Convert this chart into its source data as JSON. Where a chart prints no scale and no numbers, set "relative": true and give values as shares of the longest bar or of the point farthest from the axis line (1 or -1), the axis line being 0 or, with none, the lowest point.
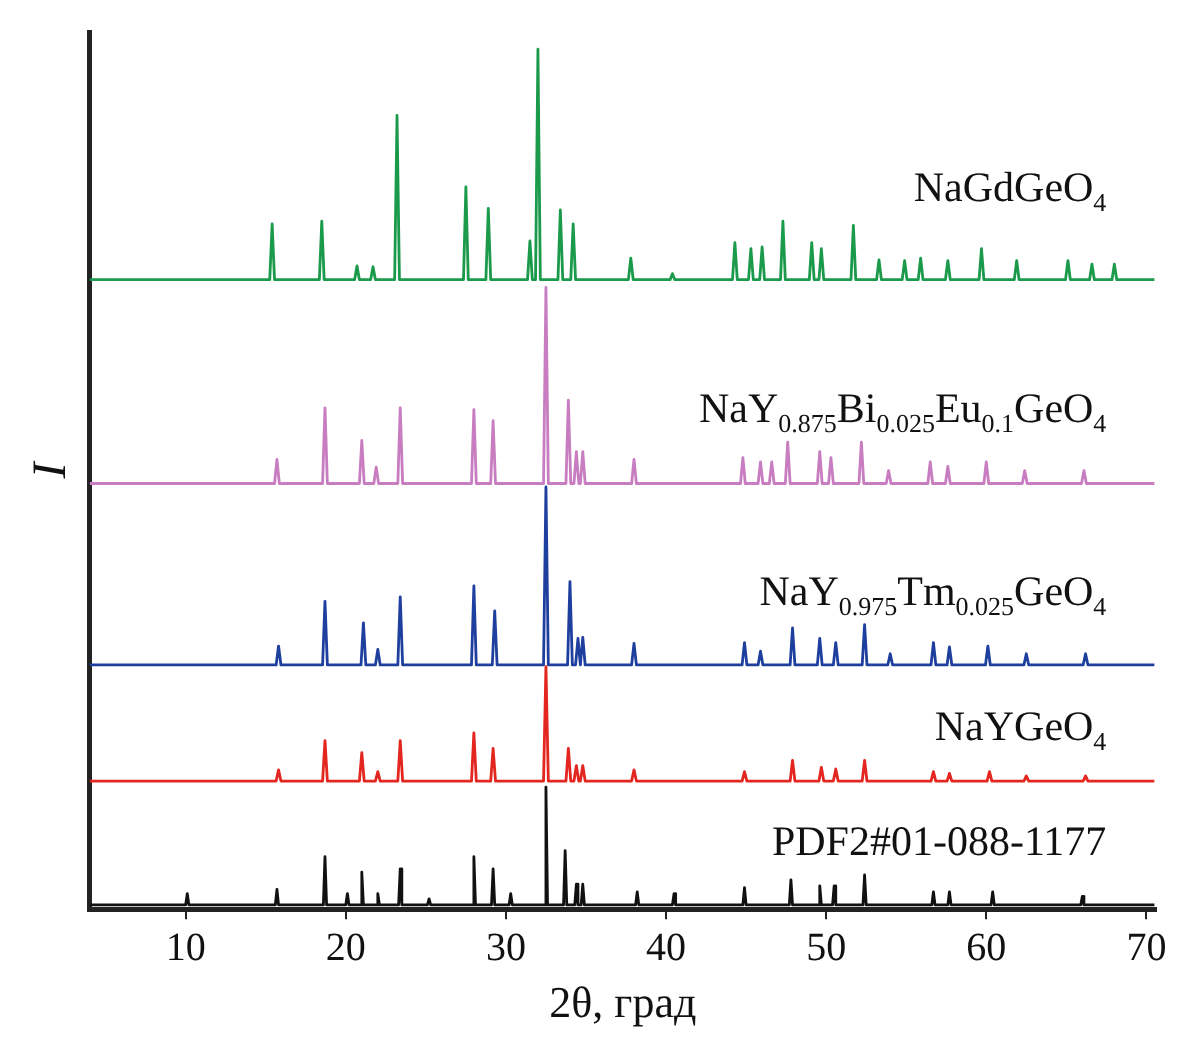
{
  "chart_data": {
    "type": "line",
    "relative": true,
    "xlabel": "2θ, град",
    "ylabel": "I",
    "xlim": [
      4,
      70.6
    ],
    "xticks": [
      10,
      20,
      30,
      40,
      50,
      60,
      70
    ],
    "grid": false,
    "legend": false,
    "marker": "none",
    "line_style": "solid",
    "series": [
      {
        "name": "NaGdGeO$_{4}$",
        "color": "#1a9a4a",
        "x": [
          4,
          15.25,
          15.4,
          15.55,
          18.35,
          18.5,
          18.65,
          20.55,
          20.7,
          20.85,
          21.55,
          21.7,
          21.85,
          23.05,
          23.2,
          23.35,
          27.35,
          27.5,
          27.65,
          28.75,
          28.9,
          29.05,
          31.35,
          31.5,
          31.65,
          31.85,
          32.0,
          32.15,
          33.25,
          33.4,
          33.55,
          34.05,
          34.2,
          34.35,
          37.65,
          37.8,
          37.95,
          40.25,
          40.4,
          40.55,
          44.15,
          44.3,
          44.45,
          45.15,
          45.3,
          45.45,
          45.85,
          46.0,
          46.15,
          47.15,
          47.3,
          47.45,
          48.95,
          49.1,
          49.25,
          49.55,
          49.7,
          49.85,
          51.55,
          51.7,
          51.85,
          53.15,
          53.3,
          53.45,
          54.75,
          54.9,
          55.05,
          55.75,
          55.9,
          56.05,
          57.45,
          57.6,
          57.75,
          59.55,
          59.7,
          59.85,
          61.75,
          61.9,
          62.05,
          64.95,
          65.1,
          65.25,
          66.45,
          66.6,
          66.75,
          67.85,
          68.0,
          68.15,
          70.5
        ],
        "values": [
          0.732,
          0.732,
          0.797,
          0.732,
          0.732,
          0.8,
          0.732,
          0.732,
          0.748,
          0.732,
          0.732,
          0.747,
          0.732,
          0.732,
          0.923,
          0.732,
          0.732,
          0.84,
          0.732,
          0.732,
          0.815,
          0.732,
          0.732,
          0.777,
          0.732,
          0.732,
          1.0,
          0.732,
          0.732,
          0.813,
          0.732,
          0.732,
          0.797,
          0.732,
          0.732,
          0.757,
          0.732,
          0.732,
          0.739,
          0.732,
          0.732,
          0.775,
          0.732,
          0.732,
          0.768,
          0.732,
          0.732,
          0.77,
          0.732,
          0.732,
          0.8,
          0.732,
          0.732,
          0.775,
          0.732,
          0.732,
          0.768,
          0.732,
          0.732,
          0.795,
          0.732,
          0.732,
          0.755,
          0.732,
          0.732,
          0.754,
          0.732,
          0.732,
          0.757,
          0.732,
          0.732,
          0.754,
          0.732,
          0.732,
          0.768,
          0.732,
          0.732,
          0.754,
          0.732,
          0.732,
          0.754,
          0.732,
          0.732,
          0.75,
          0.732,
          0.732,
          0.75,
          0.732,
          0.732
        ]
      },
      {
        "name": "NaY$_{0.875}$Bi$_{0.025}$Eu$_{0.1}$GeO$_{4}$",
        "color": "#c77dc0",
        "x": [
          4,
          15.55,
          15.7,
          15.85,
          18.55,
          18.7,
          18.85,
          20.85,
          21.0,
          21.15,
          21.75,
          21.9,
          22.05,
          23.25,
          23.4,
          23.55,
          27.85,
          28.0,
          28.15,
          29.05,
          29.2,
          29.35,
          32.35,
          32.5,
          32.65,
          33.75,
          33.9,
          34.05,
          34.25,
          34.4,
          34.55,
          34.65,
          34.8,
          34.95,
          37.85,
          38.0,
          38.15,
          44.65,
          44.8,
          44.95,
          45.75,
          45.9,
          46.05,
          46.45,
          46.6,
          46.75,
          47.45,
          47.6,
          47.75,
          49.45,
          49.6,
          49.75,
          50.15,
          50.3,
          50.45,
          52.05,
          52.2,
          52.35,
          53.75,
          53.9,
          54.05,
          56.35,
          56.5,
          56.65,
          57.45,
          57.6,
          57.75,
          59.85,
          60.0,
          60.15,
          62.25,
          62.4,
          62.55,
          65.95,
          66.1,
          66.25,
          70.5
        ],
        "values": [
          0.495,
          0.495,
          0.523,
          0.495,
          0.495,
          0.583,
          0.495,
          0.495,
          0.545,
          0.495,
          0.495,
          0.514,
          0.495,
          0.495,
          0.583,
          0.495,
          0.495,
          0.581,
          0.495,
          0.495,
          0.568,
          0.495,
          0.495,
          0.723,
          0.495,
          0.495,
          0.592,
          0.495,
          0.495,
          0.532,
          0.495,
          0.495,
          0.532,
          0.495,
          0.495,
          0.523,
          0.495,
          0.495,
          0.525,
          0.495,
          0.495,
          0.52,
          0.495,
          0.495,
          0.52,
          0.495,
          0.495,
          0.543,
          0.495,
          0.495,
          0.532,
          0.495,
          0.495,
          0.525,
          0.495,
          0.495,
          0.543,
          0.495,
          0.495,
          0.51,
          0.495,
          0.495,
          0.52,
          0.495,
          0.495,
          0.515,
          0.495,
          0.495,
          0.52,
          0.495,
          0.495,
          0.51,
          0.495,
          0.495,
          0.51,
          0.495,
          0.495
        ]
      },
      {
        "name": "NaY$_{0.975}$Tm$_{0.025}$GeO$_{4}$",
        "color": "#1f3f9f",
        "x": [
          4,
          15.65,
          15.8,
          15.95,
          18.55,
          18.7,
          18.85,
          20.95,
          21.1,
          21.25,
          21.85,
          22.0,
          22.15,
          23.25,
          23.4,
          23.55,
          27.85,
          28.0,
          28.15,
          29.15,
          29.3,
          29.45,
          32.35,
          32.5,
          32.65,
          33.85,
          34.0,
          34.15,
          34.35,
          34.5,
          34.65,
          34.65,
          34.8,
          34.95,
          37.85,
          38.0,
          38.15,
          44.75,
          44.9,
          45.05,
          45.75,
          45.9,
          46.05,
          47.75,
          47.9,
          48.05,
          49.45,
          49.6,
          49.75,
          50.45,
          50.6,
          50.75,
          52.25,
          52.4,
          52.55,
          53.85,
          54.0,
          54.15,
          56.55,
          56.7,
          56.85,
          57.55,
          57.7,
          57.85,
          59.95,
          60.1,
          60.25,
          62.35,
          62.5,
          62.65,
          66.05,
          66.2,
          66.35,
          70.5
        ],
        "values": [
          0.284,
          0.284,
          0.306,
          0.284,
          0.284,
          0.358,
          0.284,
          0.284,
          0.333,
          0.284,
          0.284,
          0.302,
          0.284,
          0.284,
          0.363,
          0.284,
          0.284,
          0.376,
          0.284,
          0.284,
          0.347,
          0.284,
          0.284,
          0.491,
          0.284,
          0.284,
          0.381,
          0.284,
          0.284,
          0.315,
          0.284,
          0.284,
          0.316,
          0.284,
          0.284,
          0.309,
          0.284,
          0.284,
          0.31,
          0.284,
          0.284,
          0.3,
          0.284,
          0.284,
          0.327,
          0.284,
          0.284,
          0.315,
          0.284,
          0.284,
          0.31,
          0.284,
          0.284,
          0.331,
          0.284,
          0.284,
          0.297,
          0.284,
          0.284,
          0.31,
          0.284,
          0.284,
          0.305,
          0.284,
          0.284,
          0.306,
          0.284,
          0.284,
          0.297,
          0.284,
          0.284,
          0.297,
          0.284,
          0.284
        ]
      },
      {
        "name": "NaYGeO$_{4}$",
        "color": "#e3261f",
        "x": [
          4,
          15.65,
          15.8,
          15.95,
          18.55,
          18.7,
          18.85,
          20.85,
          21.0,
          21.15,
          21.85,
          22.0,
          22.15,
          23.25,
          23.4,
          23.55,
          27.85,
          28.0,
          28.15,
          29.05,
          29.2,
          29.35,
          32.35,
          32.5,
          32.65,
          33.75,
          33.9,
          34.05,
          34.25,
          34.4,
          34.55,
          34.65,
          34.8,
          34.95,
          37.85,
          38.0,
          38.15,
          44.75,
          44.9,
          45.05,
          47.75,
          47.9,
          48.05,
          49.55,
          49.7,
          49.85,
          50.45,
          50.6,
          50.75,
          52.25,
          52.4,
          52.55,
          56.55,
          56.7,
          56.85,
          57.55,
          57.7,
          57.85,
          60.05,
          60.2,
          60.35,
          62.35,
          62.5,
          62.65,
          66.05,
          66.2,
          66.35,
          70.5
        ],
        "values": [
          0.149,
          0.149,
          0.162,
          0.149,
          0.149,
          0.196,
          0.149,
          0.149,
          0.182,
          0.149,
          0.149,
          0.16,
          0.149,
          0.149,
          0.196,
          0.149,
          0.149,
          0.205,
          0.149,
          0.149,
          0.187,
          0.149,
          0.149,
          0.282,
          0.149,
          0.149,
          0.187,
          0.149,
          0.149,
          0.167,
          0.149,
          0.149,
          0.167,
          0.149,
          0.149,
          0.162,
          0.149,
          0.149,
          0.16,
          0.149,
          0.149,
          0.173,
          0.149,
          0.149,
          0.165,
          0.149,
          0.149,
          0.163,
          0.149,
          0.149,
          0.173,
          0.149,
          0.149,
          0.16,
          0.149,
          0.149,
          0.158,
          0.149,
          0.149,
          0.16,
          0.149,
          0.149,
          0.155,
          0.149,
          0.149,
          0.155,
          0.149,
          0.149
        ]
      },
      {
        "name": "PDF2#01-088-1177",
        "color": "#111111",
        "x": [
          4,
          10.0,
          10.1,
          10.2,
          15.6,
          15.7,
          15.8,
          18.6,
          18.7,
          18.8,
          20.0,
          20.1,
          20.2,
          20.9,
          21.0,
          21.1,
          21.9,
          22.0,
          22.1,
          23.3,
          23.4,
          23.5,
          25.1,
          25.2,
          25.3,
          27.9,
          28.0,
          28.1,
          29.1,
          29.2,
          29.3,
          30.2,
          30.3,
          30.4,
          32.4,
          32.5,
          32.6,
          33.6,
          33.7,
          33.8,
          34.3,
          34.4,
          34.5,
          34.7,
          34.8,
          34.9,
          38.1,
          38.2,
          38.3,
          40.4,
          40.5,
          40.6,
          44.8,
          44.9,
          45.0,
          47.7,
          47.8,
          47.9,
          49.5,
          49.6,
          49.7,
          50.4,
          50.5,
          50.6,
          52.3,
          52.4,
          52.5,
          56.6,
          56.7,
          56.8,
          57.6,
          57.7,
          57.8,
          60.3,
          60.4,
          60.5,
          65.9,
          66.0,
          66.1,
          70.5
        ],
        "values": [
          0.005,
          0.005,
          0.018,
          0.005,
          0.005,
          0.023,
          0.005,
          0.005,
          0.061,
          0.005,
          0.005,
          0.018,
          0.005,
          0.005,
          0.043,
          0.005,
          0.005,
          0.018,
          0.005,
          0.005,
          0.047,
          0.005,
          0.005,
          0.012,
          0.005,
          0.005,
          0.061,
          0.005,
          0.005,
          0.047,
          0.005,
          0.005,
          0.018,
          0.005,
          0.005,
          0.142,
          0.005,
          0.005,
          0.068,
          0.005,
          0.005,
          0.029,
          0.005,
          0.005,
          0.029,
          0.005,
          0.005,
          0.02,
          0.005,
          0.005,
          0.018,
          0.005,
          0.005,
          0.025,
          0.005,
          0.005,
          0.034,
          0.005,
          0.005,
          0.027,
          0.005,
          0.005,
          0.027,
          0.005,
          0.005,
          0.04,
          0.005,
          0.005,
          0.02,
          0.005,
          0.005,
          0.02,
          0.005,
          0.005,
          0.02,
          0.005,
          0.005,
          0.015,
          0.005,
          0.005
        ]
      }
    ]
  }
}
